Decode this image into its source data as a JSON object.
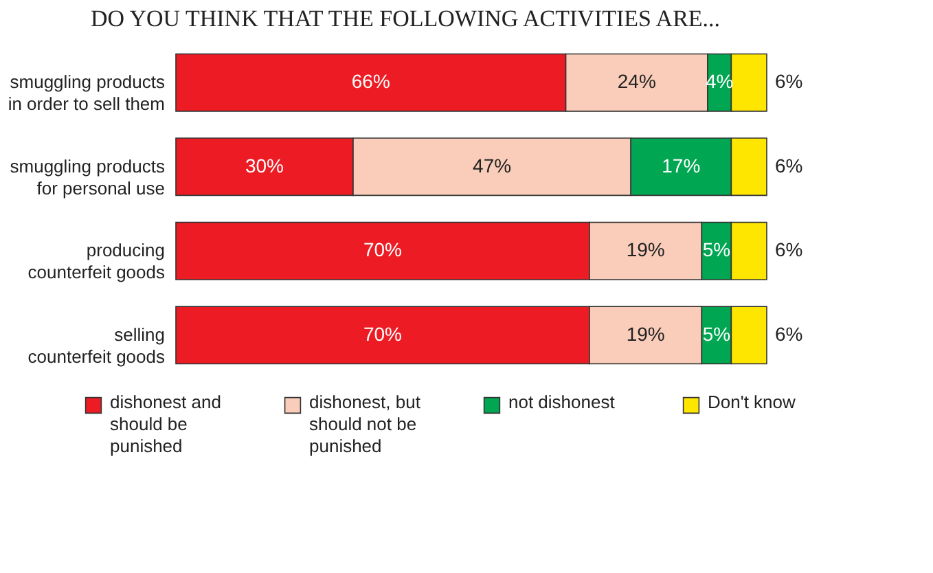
{
  "chart_data": {
    "type": "bar",
    "orientation": "horizontal",
    "stacked": true,
    "title": "DO YOU THINK THAT THE FOLLOWING ACTIVITIES ARE...",
    "categories": [
      "smuggling products in order to sell them",
      "smuggling products for personal use",
      "producing counterfeit goods",
      "selling counterfeit goods"
    ],
    "series": [
      {
        "name": "dishonest and should be punished",
        "color": "#ed1c24",
        "values": [
          66,
          30,
          70,
          70
        ],
        "value_labels": [
          "66%",
          "30%",
          "70%",
          "70%"
        ]
      },
      {
        "name": "dishonest, but should not be punished",
        "color": "#f9cdb9",
        "values": [
          24,
          47,
          19,
          19
        ],
        "value_labels": [
          "24%",
          "47%",
          "19%",
          "19%"
        ]
      },
      {
        "name": "not dishonest",
        "color": "#00a651",
        "values": [
          4,
          17,
          5,
          5
        ],
        "value_labels": [
          "4%",
          "17%",
          "5%",
          "5%"
        ]
      },
      {
        "name": "Don't know",
        "color": "#ffe600",
        "values": [
          6,
          6,
          6,
          6
        ],
        "value_labels": [
          "6%",
          "6%",
          "6%",
          "6%"
        ]
      }
    ],
    "legend": "bottom"
  }
}
